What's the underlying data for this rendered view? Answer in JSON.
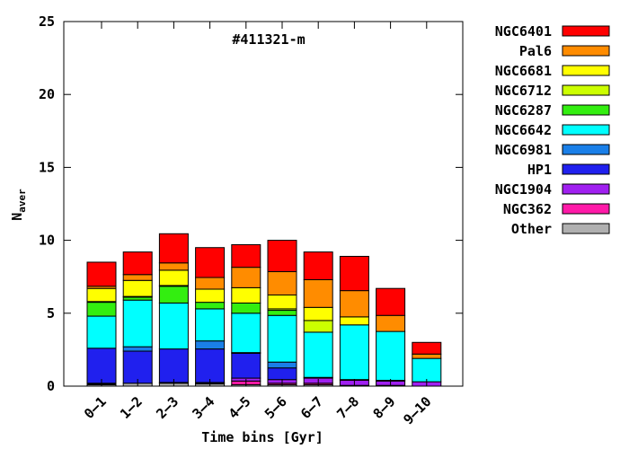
{
  "chart_data": {
    "type": "bar",
    "stacked": true,
    "annotation": "#411321-m",
    "xlabel": "Time bins [Gyr]",
    "ylabel": "N",
    "ylabel_subscript": "aver",
    "ylim": [
      0,
      25
    ],
    "yticks": [
      0,
      5,
      10,
      15,
      20,
      25
    ],
    "grid": false,
    "legend_position": "right",
    "categories": [
      "0–1",
      "1–2",
      "2–3",
      "3–4",
      "4–5",
      "5–6",
      "6–7",
      "7–8",
      "8–9",
      "9–10"
    ],
    "series": [
      {
        "name": "Other",
        "color": "#b0b0b0",
        "values": [
          0.1,
          0.2,
          0.2,
          0.15,
          0.1,
          0.1,
          0.1,
          0.0,
          0.0,
          0.0
        ]
      },
      {
        "name": "NGC362",
        "color": "#ff1aa8",
        "values": [
          0.05,
          0.0,
          0.0,
          0.05,
          0.25,
          0.1,
          0.1,
          0.05,
          0.05,
          0.0
        ]
      },
      {
        "name": "NGC1904",
        "color": "#a020f0",
        "values": [
          0.05,
          0.0,
          0.05,
          0.05,
          0.2,
          0.25,
          0.35,
          0.35,
          0.3,
          0.3
        ]
      },
      {
        "name": "HP1",
        "color": "#2020ee",
        "values": [
          2.4,
          2.2,
          2.3,
          2.3,
          1.7,
          0.8,
          0.0,
          0.0,
          0.0,
          0.0
        ]
      },
      {
        "name": "NGC6981",
        "color": "#1a7fe8",
        "values": [
          0.0,
          0.3,
          0.0,
          0.55,
          0.05,
          0.4,
          0.05,
          0.05,
          0.05,
          0.0
        ]
      },
      {
        "name": "NGC6642",
        "color": "#00ffff",
        "values": [
          2.2,
          3.2,
          3.15,
          2.2,
          2.7,
          3.2,
          3.1,
          3.75,
          3.35,
          1.6
        ]
      },
      {
        "name": "NGC6287",
        "color": "#33ee10",
        "values": [
          0.95,
          0.2,
          1.15,
          0.45,
          0.7,
          0.35,
          0.0,
          0.0,
          0.0,
          0.0
        ]
      },
      {
        "name": "NGC6712",
        "color": "#ccff00",
        "values": [
          0.05,
          0.05,
          0.05,
          0.0,
          0.0,
          0.1,
          0.8,
          0.0,
          0.0,
          0.0
        ]
      },
      {
        "name": "NGC6681",
        "color": "#ffff00",
        "values": [
          0.9,
          1.1,
          1.05,
          0.9,
          1.05,
          0.95,
          0.9,
          0.55,
          0.0,
          0.0
        ]
      },
      {
        "name": "Pal6",
        "color": "#ff8c00",
        "values": [
          0.15,
          0.4,
          0.5,
          0.8,
          1.4,
          1.6,
          1.9,
          1.8,
          1.1,
          0.3
        ]
      },
      {
        "name": "NGC6401",
        "color": "#ff0000",
        "values": [
          1.65,
          1.55,
          2.0,
          2.05,
          1.55,
          2.15,
          1.9,
          2.35,
          1.85,
          0.8
        ]
      }
    ]
  }
}
